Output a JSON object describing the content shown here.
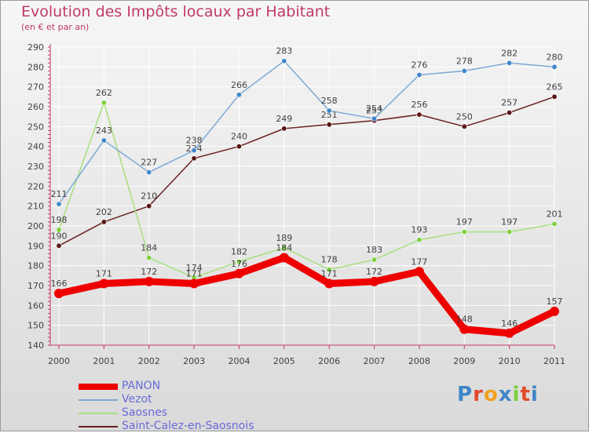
{
  "title": "Evolution des Impôts locaux par Habitant",
  "subtitle": "(en € et par an)",
  "logo": "Proxiti",
  "colors": {
    "title": "#c0396b",
    "axis": "#c8385f",
    "grid": "#ffffff",
    "labels": "#404040",
    "legend_text": "#6a6ad8"
  },
  "chart_data": {
    "type": "line",
    "x": [
      "2000",
      "2001",
      "2002",
      "2003",
      "2004",
      "2005",
      "2006",
      "2007",
      "2008",
      "2009",
      "2010",
      "2011"
    ],
    "ylim": [
      140,
      290
    ],
    "yticks": [
      140,
      150,
      160,
      170,
      180,
      190,
      200,
      210,
      220,
      230,
      240,
      250,
      260,
      270,
      280,
      290
    ],
    "grid": true,
    "legend_position": "bottom-left",
    "series": [
      {
        "name": "Saint-Calez-en-Saosnois",
        "color": "#6b2020",
        "marker": "#5a1515",
        "width": 1.5,
        "values": [
          190,
          202,
          210,
          234,
          240,
          249,
          251,
          253,
          256,
          250,
          257,
          265
        ]
      },
      {
        "name": "Saosnes",
        "color": "#a6e07e",
        "marker": "#7ccf3c",
        "width": 1.5,
        "values": [
          198,
          262,
          184,
          174,
          182,
          189,
          178,
          183,
          193,
          197,
          197,
          201
        ]
      },
      {
        "name": "Vezot",
        "color": "#7da9d6",
        "marker": "#3f86c8",
        "width": 1.5,
        "values": [
          211,
          243,
          227,
          238,
          266,
          283,
          258,
          254,
          276,
          278,
          282,
          280
        ]
      },
      {
        "name": "PANON",
        "color": "#ee0000",
        "marker": "#ee0000",
        "width": 9,
        "values": [
          166,
          171,
          172,
          171,
          176,
          184,
          171,
          172,
          177,
          148,
          146,
          157
        ]
      }
    ],
    "legend_order": [
      "PANON",
      "Vezot",
      "Saosnes",
      "Saint-Calez-en-Saosnois"
    ]
  }
}
